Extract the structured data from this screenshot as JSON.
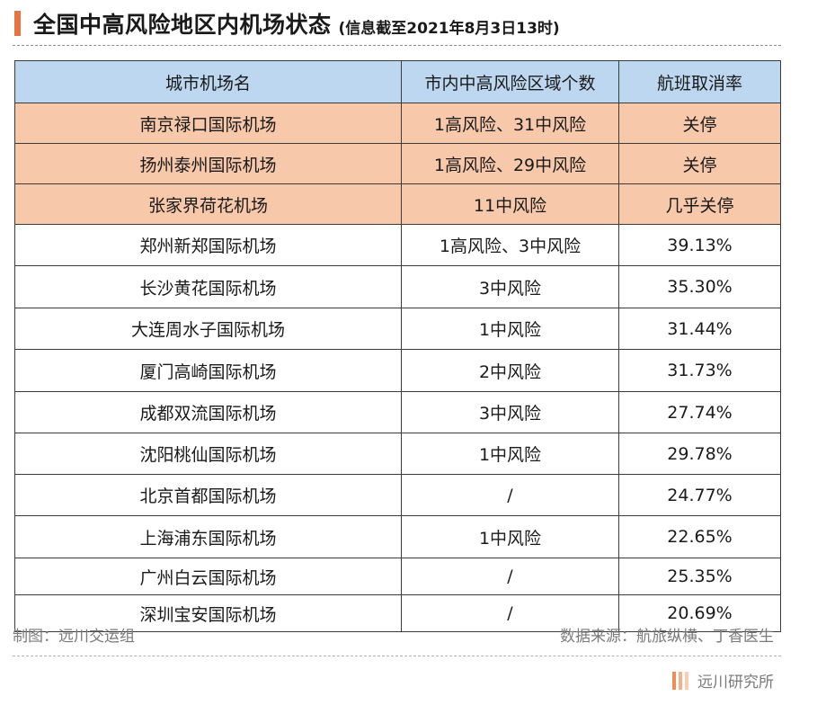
{
  "header": {
    "title": "全国中高风险地区内机场状态",
    "subtitle": "(信息截至2021年8月3日13时)"
  },
  "table": {
    "columns": [
      "城市机场名",
      "市内中高风险区域个数",
      "航班取消率"
    ],
    "rows": [
      {
        "name": "南京禄口国际机场",
        "risk": "1高风险、31中风险",
        "rate": "关停",
        "highlight": true
      },
      {
        "name": "扬州泰州国际机场",
        "risk": "1高风险、29中风险",
        "rate": "关停",
        "highlight": true
      },
      {
        "name": "张家界荷花机场",
        "risk": "11中风险",
        "rate": "几乎关停",
        "highlight": true
      },
      {
        "name": "郑州新郑国际机场",
        "risk": "1高风险、3中风险",
        "rate": "39.13%",
        "highlight": false
      },
      {
        "name": "长沙黄花国际机场",
        "risk": "3中风险",
        "rate": "35.30%",
        "highlight": false
      },
      {
        "name": "大连周水子国际机场",
        "risk": "1中风险",
        "rate": "31.44%",
        "highlight": false
      },
      {
        "name": "厦门高崎国际机场",
        "risk": "2中风险",
        "rate": "31.73%",
        "highlight": false
      },
      {
        "name": "成都双流国际机场",
        "risk": "3中风险",
        "rate": "27.74%",
        "highlight": false
      },
      {
        "name": "沈阳桃仙国际机场",
        "risk": "1中风险",
        "rate": "29.78%",
        "highlight": false
      },
      {
        "name": "北京首都国际机场",
        "risk": "/",
        "rate": "24.77%",
        "highlight": false
      },
      {
        "name": "上海浦东国际机场",
        "risk": "1中风险",
        "rate": "22.65%",
        "highlight": false
      },
      {
        "name": "广州白云国际机场",
        "risk": "/",
        "rate": "25.35%",
        "highlight": false
      },
      {
        "name": "深圳宝安国际机场",
        "risk": "/",
        "rate": "20.69%",
        "highlight": false
      }
    ]
  },
  "footer": {
    "maker": "制图：远川交运组",
    "source": "数据来源：航旅纵横、丁香医生",
    "brand": "远川研究所"
  },
  "colors": {
    "accent": "#e5743f",
    "header_bg": "#bcd7ef",
    "highlight_bg": "#f7c8aa"
  }
}
